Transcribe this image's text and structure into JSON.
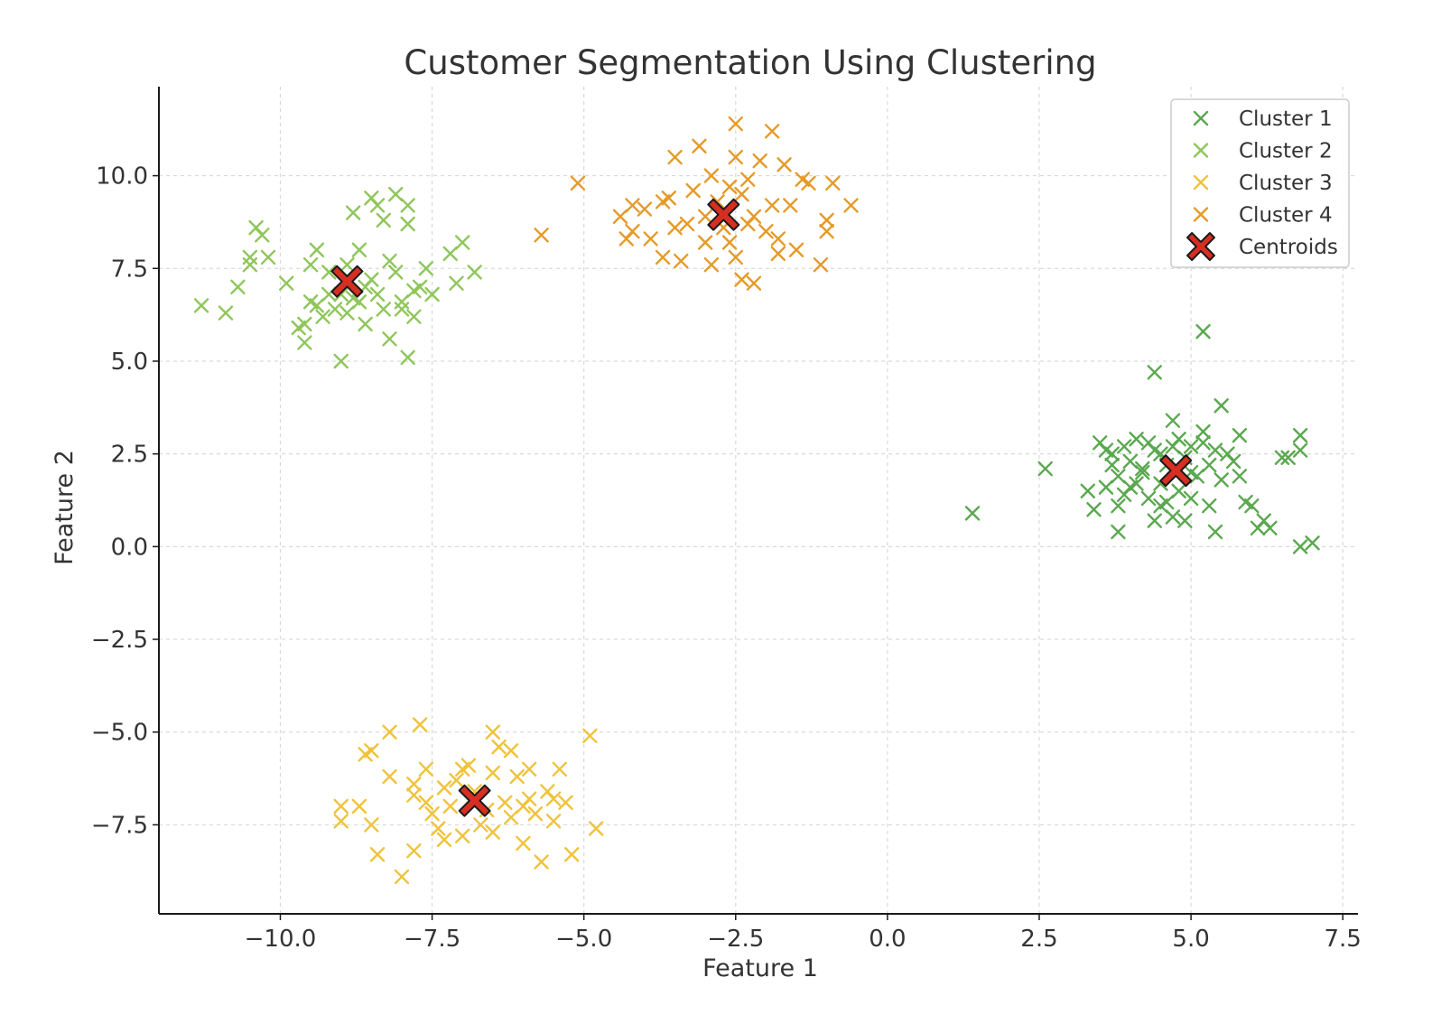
{
  "chart_data": {
    "type": "scatter",
    "title": "Customer Segmentation Using Clustering",
    "xlabel": "Feature 1",
    "ylabel": "Feature 2",
    "xlim": [
      -12.0,
      7.75
    ],
    "ylim": [
      -9.9,
      12.4
    ],
    "xticks": [
      -10.0,
      -7.5,
      -5.0,
      -2.5,
      0.0,
      2.5,
      5.0,
      7.5
    ],
    "yticks": [
      -7.5,
      -5.0,
      -2.5,
      0.0,
      2.5,
      5.0,
      7.5,
      10.0
    ],
    "xtick_labels": [
      "−10.0",
      "−7.5",
      "−5.0",
      "−2.5",
      "0.0",
      "2.5",
      "5.0",
      "7.5"
    ],
    "ytick_labels": [
      "−7.5",
      "−5.0",
      "−2.5",
      "0.0",
      "2.5",
      "5.0",
      "7.5",
      "10.0"
    ],
    "grid": true,
    "legend_position": "top-right",
    "marker": "x",
    "series": [
      {
        "name": "Cluster 1",
        "color": "#5aa84f",
        "points": [
          [
            5.2,
            5.8
          ],
          [
            4.4,
            4.7
          ],
          [
            5.5,
            3.8
          ],
          [
            4.7,
            3.4
          ],
          [
            1.4,
            0.9
          ],
          [
            2.6,
            2.1
          ],
          [
            3.3,
            1.5
          ],
          [
            3.4,
            1.0
          ],
          [
            3.5,
            2.8
          ],
          [
            3.6,
            2.6
          ],
          [
            3.7,
            2.2
          ],
          [
            3.8,
            1.9
          ],
          [
            3.8,
            1.1
          ],
          [
            3.8,
            0.4
          ],
          [
            3.9,
            2.7
          ],
          [
            4.0,
            2.3
          ],
          [
            4.0,
            1.6
          ],
          [
            4.1,
            2.9
          ],
          [
            4.2,
            2.0
          ],
          [
            4.3,
            1.3
          ],
          [
            4.3,
            2.8
          ],
          [
            4.4,
            0.7
          ],
          [
            4.5,
            2.5
          ],
          [
            4.5,
            1.7
          ],
          [
            4.6,
            1.2
          ],
          [
            4.7,
            2.7
          ],
          [
            4.7,
            0.8
          ],
          [
            4.8,
            1.5
          ],
          [
            4.9,
            2.4
          ],
          [
            4.9,
            0.7
          ],
          [
            5.0,
            2.7
          ],
          [
            5.0,
            1.3
          ],
          [
            5.1,
            1.9
          ],
          [
            5.2,
            2.8
          ],
          [
            5.2,
            3.1
          ],
          [
            5.3,
            1.1
          ],
          [
            5.4,
            2.6
          ],
          [
            5.4,
            0.4
          ],
          [
            5.5,
            1.8
          ],
          [
            5.6,
            2.5
          ],
          [
            5.7,
            2.3
          ],
          [
            5.8,
            3.0
          ],
          [
            5.8,
            1.9
          ],
          [
            5.9,
            1.2
          ],
          [
            6.0,
            1.1
          ],
          [
            6.1,
            0.5
          ],
          [
            6.2,
            0.7
          ],
          [
            6.3,
            0.5
          ],
          [
            6.5,
            2.4
          ],
          [
            6.6,
            2.4
          ],
          [
            6.8,
            3.0
          ],
          [
            6.8,
            2.6
          ],
          [
            6.8,
            0.0
          ],
          [
            7.0,
            0.1
          ],
          [
            3.6,
            1.6
          ],
          [
            4.2,
            2.1
          ],
          [
            4.6,
            2.2
          ],
          [
            5.0,
            2.0
          ],
          [
            4.4,
            2.6
          ],
          [
            3.9,
            1.4
          ],
          [
            3.7,
            2.5
          ],
          [
            4.1,
            1.7
          ],
          [
            4.8,
            2.9
          ],
          [
            5.3,
            2.2
          ],
          [
            4.5,
            1.1
          ]
        ]
      },
      {
        "name": "Cluster 2",
        "color": "#8fc65a",
        "points": [
          [
            -11.3,
            6.5
          ],
          [
            -10.9,
            6.3
          ],
          [
            -10.7,
            7.0
          ],
          [
            -10.5,
            7.6
          ],
          [
            -10.5,
            7.8
          ],
          [
            -10.4,
            8.6
          ],
          [
            -10.3,
            8.4
          ],
          [
            -10.2,
            7.8
          ],
          [
            -9.9,
            7.1
          ],
          [
            -9.7,
            5.9
          ],
          [
            -9.6,
            5.5
          ],
          [
            -9.6,
            6.0
          ],
          [
            -9.5,
            7.6
          ],
          [
            -9.4,
            8.0
          ],
          [
            -9.4,
            6.5
          ],
          [
            -9.3,
            6.2
          ],
          [
            -9.2,
            6.8
          ],
          [
            -9.1,
            6.4
          ],
          [
            -9.0,
            5.0
          ],
          [
            -8.9,
            6.3
          ],
          [
            -8.8,
            6.7
          ],
          [
            -8.8,
            9.0
          ],
          [
            -8.7,
            8.0
          ],
          [
            -8.6,
            7.0
          ],
          [
            -8.5,
            9.4
          ],
          [
            -8.4,
            9.2
          ],
          [
            -8.3,
            6.4
          ],
          [
            -8.3,
            8.8
          ],
          [
            -8.2,
            7.7
          ],
          [
            -8.2,
            5.6
          ],
          [
            -8.1,
            9.5
          ],
          [
            -8.0,
            6.6
          ],
          [
            -7.9,
            8.7
          ],
          [
            -7.9,
            9.2
          ],
          [
            -7.9,
            5.1
          ],
          [
            -7.8,
            6.2
          ],
          [
            -7.7,
            7.0
          ],
          [
            -7.6,
            7.5
          ],
          [
            -7.5,
            6.8
          ],
          [
            -7.2,
            7.9
          ],
          [
            -7.0,
            8.2
          ],
          [
            -7.1,
            7.1
          ],
          [
            -6.8,
            7.4
          ],
          [
            -8.6,
            6.0
          ],
          [
            -9.2,
            7.4
          ],
          [
            -8.0,
            6.4
          ],
          [
            -8.5,
            7.2
          ],
          [
            -9.0,
            6.8
          ],
          [
            -8.4,
            6.8
          ],
          [
            -8.7,
            6.6
          ],
          [
            -8.9,
            7.6
          ],
          [
            -9.5,
            6.6
          ],
          [
            -7.8,
            6.9
          ],
          [
            -8.1,
            7.4
          ]
        ]
      },
      {
        "name": "Cluster 3",
        "color": "#efc33a",
        "points": [
          [
            -7.7,
            -4.8
          ],
          [
            -8.2,
            -5.0
          ],
          [
            -8.5,
            -5.5
          ],
          [
            -8.6,
            -5.6
          ],
          [
            -9.0,
            -7.0
          ],
          [
            -9.0,
            -7.4
          ],
          [
            -8.7,
            -7.0
          ],
          [
            -8.5,
            -7.5
          ],
          [
            -8.4,
            -8.3
          ],
          [
            -8.0,
            -8.9
          ],
          [
            -7.8,
            -8.2
          ],
          [
            -8.2,
            -6.2
          ],
          [
            -7.8,
            -6.4
          ],
          [
            -7.8,
            -6.7
          ],
          [
            -7.6,
            -6.9
          ],
          [
            -7.5,
            -7.2
          ],
          [
            -7.4,
            -7.6
          ],
          [
            -7.3,
            -6.5
          ],
          [
            -7.2,
            -7.0
          ],
          [
            -7.0,
            -6.0
          ],
          [
            -7.0,
            -7.8
          ],
          [
            -6.9,
            -5.9
          ],
          [
            -6.7,
            -7.5
          ],
          [
            -6.5,
            -5.0
          ],
          [
            -6.5,
            -7.7
          ],
          [
            -6.4,
            -5.4
          ],
          [
            -6.3,
            -6.9
          ],
          [
            -6.2,
            -5.5
          ],
          [
            -6.1,
            -6.2
          ],
          [
            -6.0,
            -7.0
          ],
          [
            -6.0,
            -8.0
          ],
          [
            -5.9,
            -6.0
          ],
          [
            -5.8,
            -7.2
          ],
          [
            -5.7,
            -8.5
          ],
          [
            -5.6,
            -6.6
          ],
          [
            -5.5,
            -7.4
          ],
          [
            -5.4,
            -6.0
          ],
          [
            -5.3,
            -6.9
          ],
          [
            -5.2,
            -8.3
          ],
          [
            -4.9,
            -5.1
          ],
          [
            -4.8,
            -7.6
          ],
          [
            -7.1,
            -6.3
          ],
          [
            -6.6,
            -7.1
          ],
          [
            -6.8,
            -6.6
          ],
          [
            -6.2,
            -7.3
          ],
          [
            -5.9,
            -6.8
          ],
          [
            -7.3,
            -7.9
          ],
          [
            -6.5,
            -6.1
          ],
          [
            -7.6,
            -6.0
          ],
          [
            -5.5,
            -6.8
          ]
        ]
      },
      {
        "name": "Cluster 4",
        "color": "#e59a28",
        "points": [
          [
            -2.5,
            11.4
          ],
          [
            -1.9,
            11.2
          ],
          [
            -3.1,
            10.8
          ],
          [
            -3.5,
            10.5
          ],
          [
            -2.5,
            10.5
          ],
          [
            -5.1,
            9.8
          ],
          [
            -5.7,
            8.4
          ],
          [
            -4.4,
            8.9
          ],
          [
            -4.2,
            8.5
          ],
          [
            -4.0,
            9.1
          ],
          [
            -3.9,
            8.3
          ],
          [
            -3.7,
            9.3
          ],
          [
            -3.5,
            8.6
          ],
          [
            -3.4,
            7.7
          ],
          [
            -3.2,
            9.6
          ],
          [
            -3.0,
            8.9
          ],
          [
            -2.9,
            7.6
          ],
          [
            -2.8,
            9.3
          ],
          [
            -2.6,
            8.2
          ],
          [
            -2.5,
            7.8
          ],
          [
            -2.4,
            9.5
          ],
          [
            -2.3,
            8.7
          ],
          [
            -2.2,
            7.1
          ],
          [
            -2.1,
            10.4
          ],
          [
            -2.0,
            8.5
          ],
          [
            -1.9,
            9.2
          ],
          [
            -1.8,
            7.9
          ],
          [
            -1.7,
            10.3
          ],
          [
            -1.6,
            9.2
          ],
          [
            -1.5,
            8.0
          ],
          [
            -1.4,
            9.9
          ],
          [
            -1.3,
            9.8
          ],
          [
            -1.1,
            7.6
          ],
          [
            -1.0,
            8.5
          ],
          [
            -1.0,
            8.8
          ],
          [
            -0.9,
            9.8
          ],
          [
            -0.6,
            9.2
          ],
          [
            -2.9,
            10.0
          ],
          [
            -3.7,
            7.8
          ],
          [
            -2.7,
            8.6
          ],
          [
            -3.3,
            8.7
          ],
          [
            -2.4,
            7.2
          ],
          [
            -2.2,
            8.9
          ],
          [
            -4.2,
            9.2
          ],
          [
            -3.6,
            9.4
          ],
          [
            -2.6,
            9.7
          ],
          [
            -3.0,
            8.2
          ],
          [
            -2.3,
            9.9
          ],
          [
            -1.8,
            8.3
          ],
          [
            -4.3,
            8.3
          ]
        ]
      }
    ],
    "centroids": {
      "name": "Centroids",
      "color": "#d62f21",
      "edge_color": "#1a1a1a",
      "points": [
        [
          4.75,
          2.05
        ],
        [
          -8.9,
          7.15
        ],
        [
          -6.8,
          -6.85
        ],
        [
          -2.7,
          8.95
        ]
      ]
    }
  }
}
